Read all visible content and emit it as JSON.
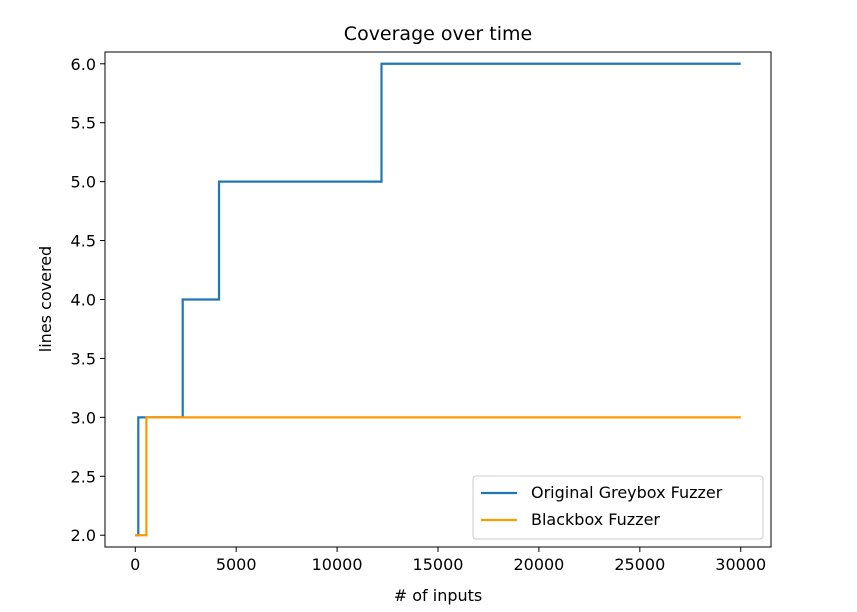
{
  "chart_data": {
    "type": "line",
    "title": "Coverage over time",
    "xlabel": "# of inputs",
    "ylabel": "lines covered",
    "xlim": [
      -1500,
      31500
    ],
    "ylim": [
      1.9,
      6.1
    ],
    "xticks": [
      0,
      5000,
      10000,
      15000,
      20000,
      25000,
      30000
    ],
    "xtick_labels": [
      "0",
      "5000",
      "10000",
      "15000",
      "20000",
      "25000",
      "30000"
    ],
    "yticks": [
      2.0,
      2.5,
      3.0,
      3.5,
      4.0,
      4.5,
      5.0,
      5.5,
      6.0
    ],
    "ytick_labels": [
      "2.0",
      "2.5",
      "3.0",
      "3.5",
      "4.0",
      "4.5",
      "5.0",
      "5.5",
      "6.0"
    ],
    "grid": false,
    "legend_position": "lower-right",
    "step": true,
    "series": [
      {
        "name": "Original Greybox Fuzzer",
        "color": "#1f77b4",
        "x": [
          0,
          150,
          2350,
          4150,
          12200,
          30000
        ],
        "y": [
          2,
          3,
          4,
          5,
          6,
          6
        ]
      },
      {
        "name": "Blackbox Fuzzer",
        "color": "#ff9900",
        "x": [
          0,
          550,
          30000
        ],
        "y": [
          2,
          3,
          3
        ]
      }
    ]
  }
}
